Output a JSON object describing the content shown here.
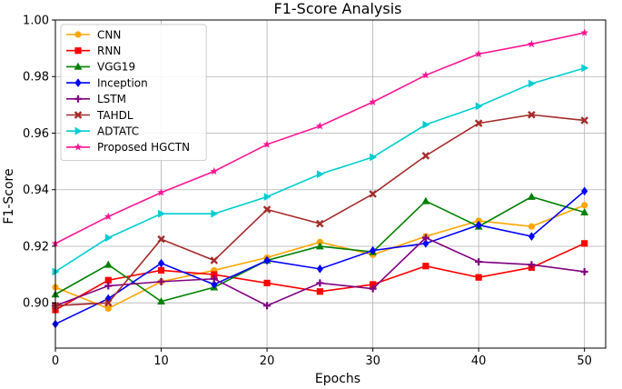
{
  "chart_data": {
    "type": "line",
    "title": "F1-Score Analysis",
    "xlabel": "Epochs",
    "ylabel": "F1-Score",
    "xlim": [
      0,
      52
    ],
    "ylim": [
      0.884,
      1.0
    ],
    "x_ticks": [
      0,
      10,
      20,
      30,
      40,
      50
    ],
    "y_ticks": [
      0.9,
      0.92,
      0.94,
      0.96,
      0.98,
      1.0
    ],
    "y_tick_labels": [
      "0.90",
      "0.92",
      "0.94",
      "0.96",
      "0.98",
      "1.00"
    ],
    "grid": true,
    "legend_position": "top-left",
    "x": [
      0,
      5,
      10,
      15,
      20,
      25,
      30,
      35,
      40,
      45,
      50
    ],
    "series": [
      {
        "name": "CNN",
        "color": "#FFA500",
        "marker": "circle",
        "values": [
          0.9055,
          0.898,
          0.9075,
          0.9115,
          0.916,
          0.9215,
          0.917,
          0.9235,
          0.929,
          0.927,
          0.9345
        ]
      },
      {
        "name": "RNN",
        "color": "#FF0000",
        "marker": "square",
        "values": [
          0.8975,
          0.908,
          0.9115,
          0.91,
          0.907,
          0.904,
          0.9065,
          0.913,
          0.909,
          0.9125,
          0.921
        ]
      },
      {
        "name": "VGG19",
        "color": "#008000",
        "marker": "triangle-up",
        "values": [
          0.903,
          0.9135,
          0.9005,
          0.9055,
          0.915,
          0.92,
          0.918,
          0.936,
          0.927,
          0.9375,
          0.932
        ]
      },
      {
        "name": "Inception",
        "color": "#0000FF",
        "marker": "diamond",
        "values": [
          0.8925,
          0.9015,
          0.914,
          0.9065,
          0.915,
          0.912,
          0.9185,
          0.921,
          0.9275,
          0.9235,
          0.9395
        ]
      },
      {
        "name": "LSTM",
        "color": "#800080",
        "marker": "plus",
        "values": [
          0.899,
          0.906,
          0.9075,
          0.9085,
          0.899,
          0.907,
          0.905,
          0.923,
          0.9145,
          0.9135,
          0.911
        ]
      },
      {
        "name": "TAHDL",
        "color": "#A52A2A",
        "marker": "x",
        "values": [
          0.899,
          0.9,
          0.9225,
          0.915,
          0.933,
          0.928,
          0.9385,
          0.952,
          0.9635,
          0.9665,
          0.9645
        ]
      },
      {
        "name": "ADTATC",
        "color": "#00CED1",
        "marker": "triangle-right",
        "values": [
          0.911,
          0.923,
          0.9315,
          0.9315,
          0.9375,
          0.9455,
          0.9515,
          0.963,
          0.9695,
          0.9775,
          0.983
        ]
      },
      {
        "name": "Proposed HGCTN",
        "color": "#FF1493",
        "marker": "star",
        "values": [
          0.921,
          0.9305,
          0.939,
          0.9465,
          0.956,
          0.9625,
          0.971,
          0.9805,
          0.988,
          0.9915,
          0.9955
        ]
      }
    ]
  }
}
